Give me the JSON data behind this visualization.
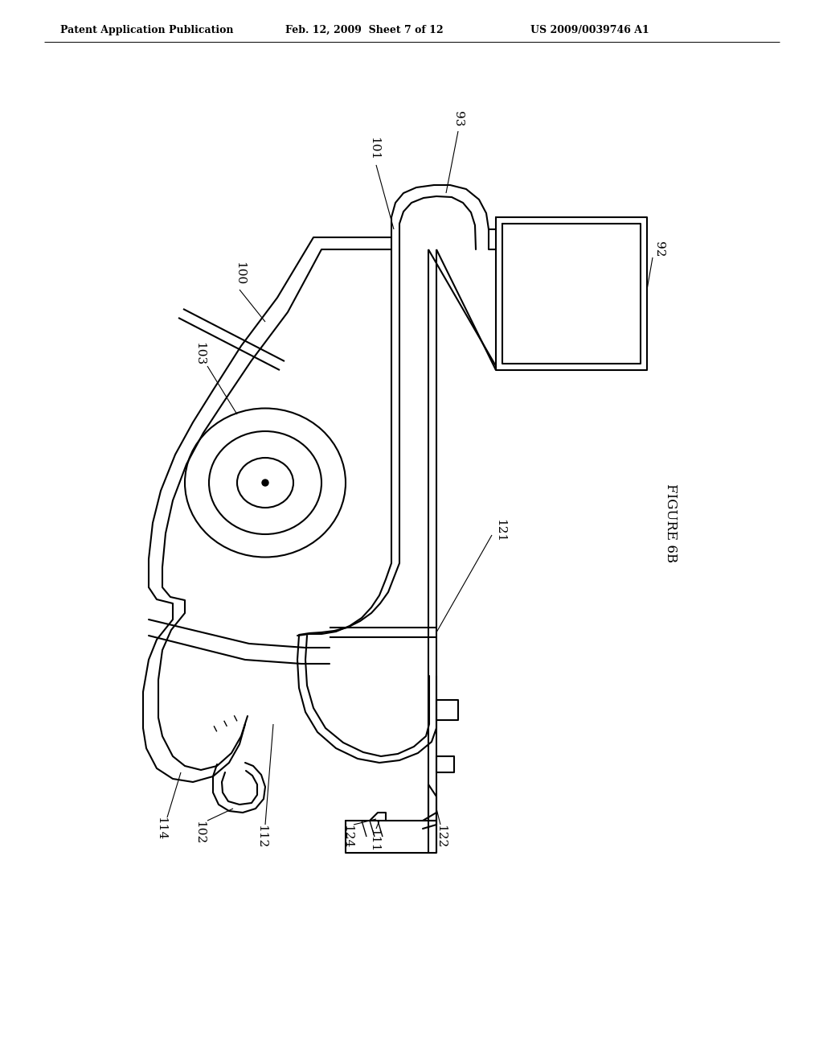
{
  "background_color": "#ffffff",
  "header_left": "Patent Application Publication",
  "header_center": "Feb. 12, 2009  Sheet 7 of 12",
  "header_right": "US 2009/0039746 A1",
  "figure_label": "FIGURE 6B",
  "line_color": "#000000",
  "line_width": 1.5
}
